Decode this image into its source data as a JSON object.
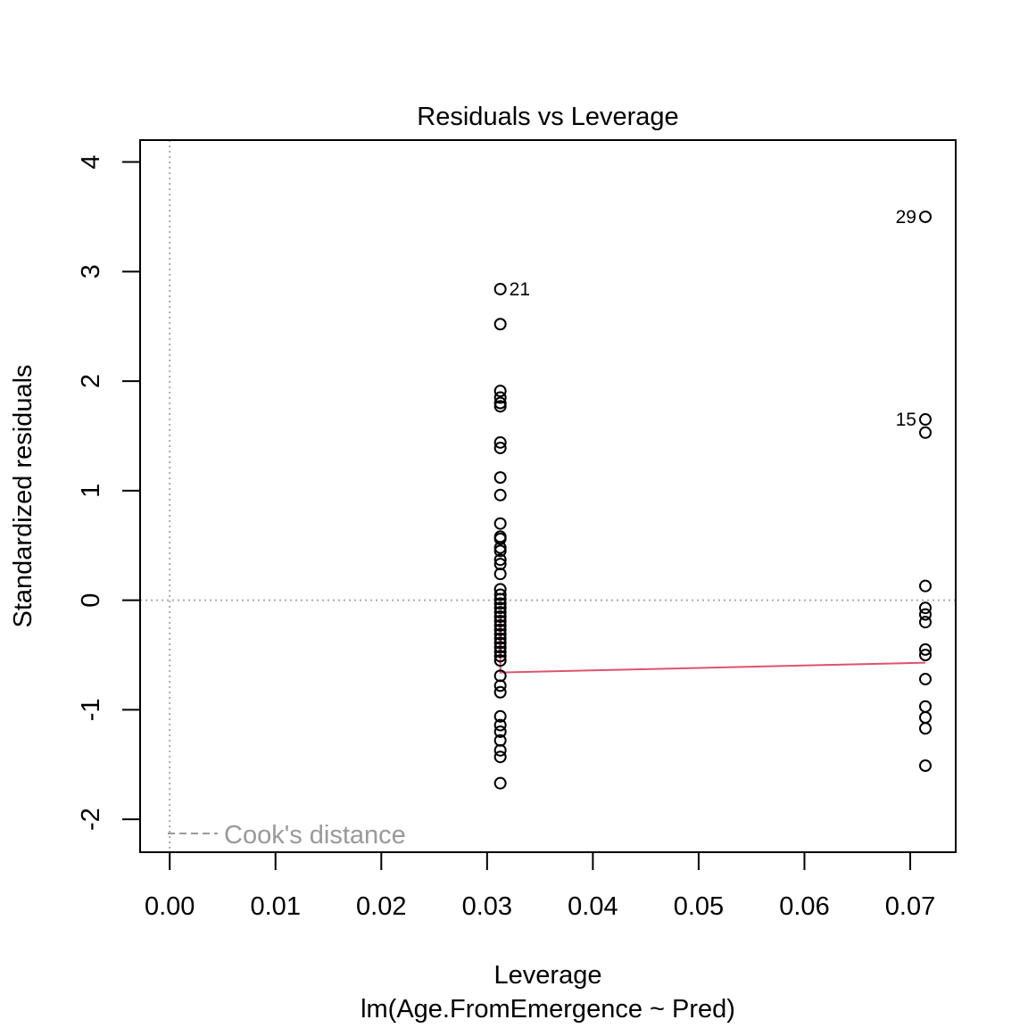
{
  "chart_data": {
    "type": "scatter",
    "title": "Residuals vs Leverage",
    "xlabel": "Leverage",
    "subtitle": "lm(Age.FromEmergence ~ Pred)",
    "ylabel": "Standardized residuals",
    "xlim": [
      -0.0028,
      0.0743
    ],
    "ylim": [
      -2.3,
      4.2
    ],
    "x_ticks": [
      0.0,
      0.01,
      0.02,
      0.03,
      0.04,
      0.05,
      0.06,
      0.07
    ],
    "x_tick_labels": [
      "0.00",
      "0.01",
      "0.02",
      "0.03",
      "0.04",
      "0.05",
      "0.06",
      "0.07"
    ],
    "y_ticks": [
      -2,
      -1,
      0,
      1,
      2,
      3,
      4
    ],
    "y_tick_labels": [
      "-2",
      "-1",
      "0",
      "1",
      "2",
      "3",
      "4"
    ],
    "legend": {
      "label": "Cook's distance",
      "position": "bottom-left"
    },
    "colors": {
      "points": "#000000",
      "smooth": "#DF536B",
      "reference": "#aaaaaa",
      "legend_text": "#999999"
    },
    "points": [
      {
        "x": 0.03125,
        "y": 2.84,
        "label": "21"
      },
      {
        "x": 0.03125,
        "y": 2.52
      },
      {
        "x": 0.03125,
        "y": 1.91
      },
      {
        "x": 0.03125,
        "y": 1.85
      },
      {
        "x": 0.03125,
        "y": 1.8
      },
      {
        "x": 0.03125,
        "y": 1.77
      },
      {
        "x": 0.03125,
        "y": 1.44
      },
      {
        "x": 0.03125,
        "y": 1.39
      },
      {
        "x": 0.03125,
        "y": 1.12
      },
      {
        "x": 0.03125,
        "y": 0.96
      },
      {
        "x": 0.03125,
        "y": 0.7
      },
      {
        "x": 0.03125,
        "y": 0.58
      },
      {
        "x": 0.03125,
        "y": 0.56
      },
      {
        "x": 0.03125,
        "y": 0.48
      },
      {
        "x": 0.03125,
        "y": 0.45
      },
      {
        "x": 0.03125,
        "y": 0.37
      },
      {
        "x": 0.03125,
        "y": 0.33
      },
      {
        "x": 0.03125,
        "y": 0.24
      },
      {
        "x": 0.03125,
        "y": 0.1
      },
      {
        "x": 0.03125,
        "y": 0.05
      },
      {
        "x": 0.03125,
        "y": 0.01
      },
      {
        "x": 0.03125,
        "y": -0.03
      },
      {
        "x": 0.03125,
        "y": -0.07
      },
      {
        "x": 0.03125,
        "y": -0.11
      },
      {
        "x": 0.03125,
        "y": -0.15
      },
      {
        "x": 0.03125,
        "y": -0.19
      },
      {
        "x": 0.03125,
        "y": -0.23
      },
      {
        "x": 0.03125,
        "y": -0.27
      },
      {
        "x": 0.03125,
        "y": -0.31
      },
      {
        "x": 0.03125,
        "y": -0.35
      },
      {
        "x": 0.03125,
        "y": -0.39
      },
      {
        "x": 0.03125,
        "y": -0.43
      },
      {
        "x": 0.03125,
        "y": -0.47
      },
      {
        "x": 0.03125,
        "y": -0.51
      },
      {
        "x": 0.03125,
        "y": -0.55
      },
      {
        "x": 0.03125,
        "y": -0.69
      },
      {
        "x": 0.03125,
        "y": -0.78
      },
      {
        "x": 0.03125,
        "y": -0.84
      },
      {
        "x": 0.03125,
        "y": -1.06
      },
      {
        "x": 0.03125,
        "y": -1.14
      },
      {
        "x": 0.03125,
        "y": -1.2
      },
      {
        "x": 0.03125,
        "y": -1.28
      },
      {
        "x": 0.03125,
        "y": -1.37
      },
      {
        "x": 0.03125,
        "y": -1.43
      },
      {
        "x": 0.03125,
        "y": -1.67
      },
      {
        "x": 0.07143,
        "y": 3.5,
        "label": "29"
      },
      {
        "x": 0.07143,
        "y": 1.65,
        "label": "15"
      },
      {
        "x": 0.07143,
        "y": 1.53
      },
      {
        "x": 0.07143,
        "y": 0.13
      },
      {
        "x": 0.07143,
        "y": -0.07
      },
      {
        "x": 0.07143,
        "y": -0.13
      },
      {
        "x": 0.07143,
        "y": -0.2
      },
      {
        "x": 0.07143,
        "y": -0.45
      },
      {
        "x": 0.07143,
        "y": -0.5
      },
      {
        "x": 0.07143,
        "y": -0.72
      },
      {
        "x": 0.07143,
        "y": -0.97
      },
      {
        "x": 0.07143,
        "y": -1.07
      },
      {
        "x": 0.07143,
        "y": -1.17
      },
      {
        "x": 0.07143,
        "y": -1.51
      }
    ],
    "smooth_line": [
      {
        "x": 0.03125,
        "y": -0.13
      },
      {
        "x": 0.03125,
        "y": -0.66
      },
      {
        "x": 0.07143,
        "y": -0.57
      }
    ]
  }
}
